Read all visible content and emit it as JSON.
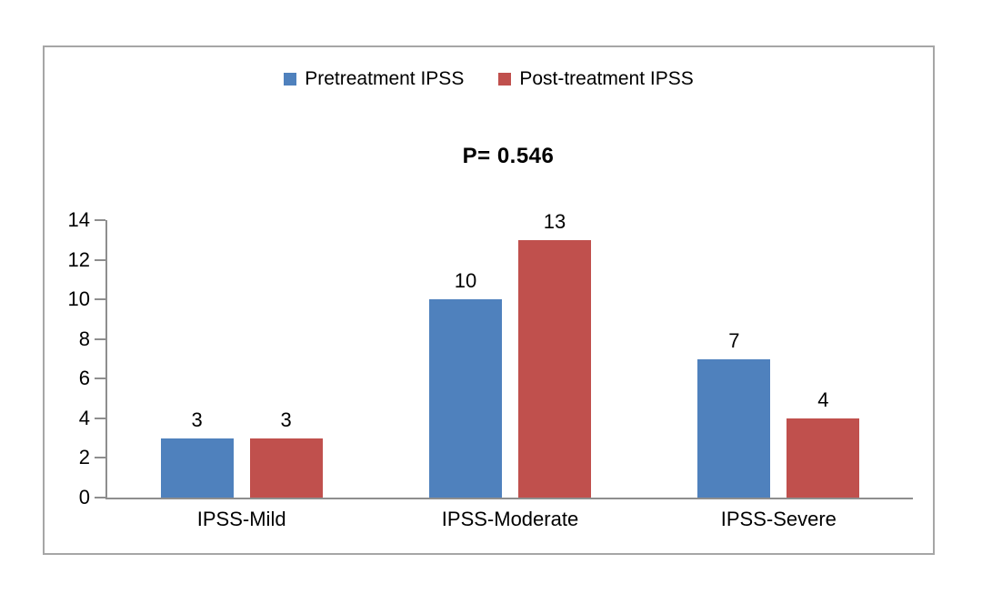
{
  "chart_data": {
    "type": "bar",
    "title": "",
    "xlabel": "",
    "ylabel": "",
    "annotation": "P= 0.546",
    "categories": [
      "IPSS-Mild",
      "IPSS-Moderate",
      "IPSS-Severe"
    ],
    "series": [
      {
        "name": "Pretreatment IPSS",
        "color": "#4F81BD",
        "values": [
          3,
          10,
          7
        ]
      },
      {
        "name": "Post-treatment IPSS",
        "color": "#C0504D",
        "values": [
          3,
          13,
          4
        ]
      }
    ],
    "ylim": [
      0,
      14
    ],
    "yticks": [
      0,
      2,
      4,
      6,
      8,
      10,
      12,
      14
    ],
    "grid": "off",
    "legend_position": "top-center"
  },
  "colors": {
    "axis": "#8E8E8E",
    "frame_border": "#A6A6A6",
    "background": "#FFFFFF",
    "text": "#000000"
  }
}
